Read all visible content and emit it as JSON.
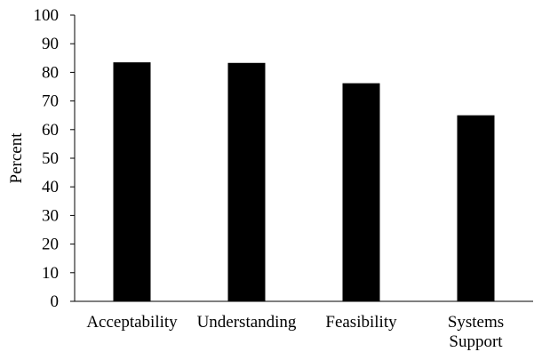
{
  "chart_data": {
    "type": "bar",
    "categories": [
      "Acceptability",
      "Understanding",
      "Feasibility",
      "Systems Support"
    ],
    "category_lines": [
      [
        "Acceptability"
      ],
      [
        "Understanding"
      ],
      [
        "Feasibility"
      ],
      [
        "Systems",
        "Support"
      ]
    ],
    "values": [
      83.5,
      83.3,
      76.2,
      65.0
    ],
    "title": "",
    "xlabel": "",
    "ylabel": "Percent",
    "ylim": [
      0,
      100
    ],
    "yticks": [
      0,
      10,
      20,
      30,
      40,
      50,
      60,
      70,
      80,
      90,
      100
    ],
    "grid": false,
    "legend": "none",
    "bar_color": "#000000",
    "axis_color": "#000000"
  }
}
